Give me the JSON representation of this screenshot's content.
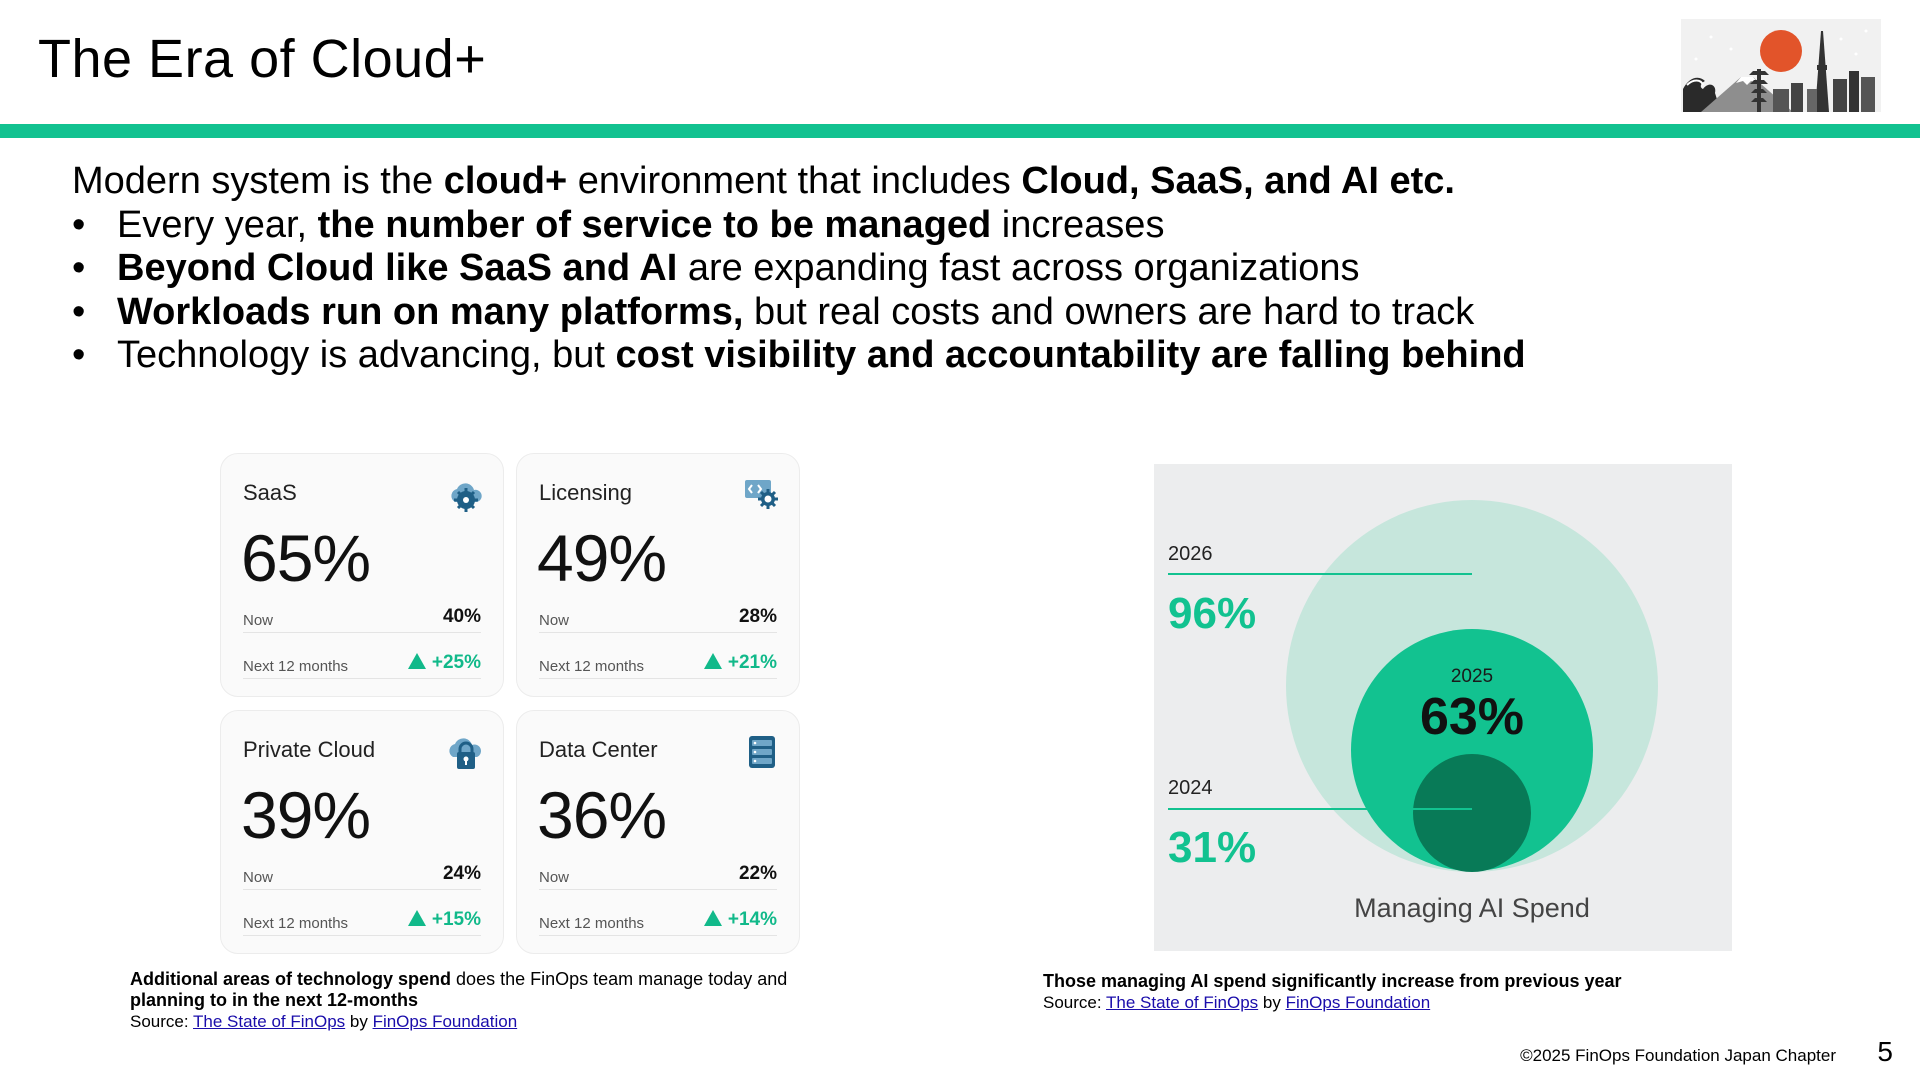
{
  "slide": {
    "title": "The Era of Cloud+",
    "accent_color": "#12c290",
    "page_number": "5",
    "footer": "©2025 FinOps Foundation Japan Chapter"
  },
  "intro": {
    "lead": {
      "p1": "Modern system is the ",
      "b1": "cloud+",
      "p2": " environment that includes ",
      "b2": "Cloud, SaaS, and AI etc."
    },
    "bullets": [
      {
        "pre": "Every year, ",
        "bold": "the number of service to be managed",
        "post": " increases"
      },
      {
        "pre": "",
        "bold": "Beyond Cloud like SaaS and AI",
        "post": " are expanding fast across organizations"
      },
      {
        "pre": "",
        "bold": "Workloads run on many platforms,",
        "post": " but real costs and owners are hard to track"
      },
      {
        "pre": "Technology is advancing, but ",
        "bold": "cost visibility and accountability are falling behind",
        "post": ""
      }
    ]
  },
  "cards": [
    {
      "name": "SaaS",
      "icon": "cloud-gear-icon",
      "pct": "65%",
      "now_label": "Now",
      "now_value": "40%",
      "next_label": "Next 12 months",
      "next_value": "+25%"
    },
    {
      "name": "Licensing",
      "icon": "license-gear-icon",
      "pct": "49%",
      "now_label": "Now",
      "now_value": "28%",
      "next_label": "Next 12 months",
      "next_value": "+21%"
    },
    {
      "name": "Private Cloud",
      "icon": "cloud-lock-icon",
      "pct": "39%",
      "now_label": "Now",
      "now_value": "24%",
      "next_label": "Next 12 months",
      "next_value": "+15%"
    },
    {
      "name": "Data Center",
      "icon": "server-icon",
      "pct": "36%",
      "now_label": "Now",
      "now_value": "22%",
      "next_label": "Next 12 months",
      "next_value": "+14%"
    }
  ],
  "left_caption": {
    "bold": "Additional areas of technology spend",
    "rest": " does the FinOps team manage today and",
    "line2": "planning to in the next 12-months",
    "source_label": "Source: ",
    "source_link1": "The State of FinOps",
    "by": " by ",
    "source_link2": "FinOps Foundation"
  },
  "ai_spend": {
    "year_2026": "2026",
    "value_2026": "96%",
    "year_2025": "2025",
    "value_2025": "63%",
    "year_2024": "2024",
    "value_2024": "31%",
    "label": "Managing AI Spend",
    "colors": {
      "outer": "#c6e6dc",
      "middle": "#12c290",
      "inner": "#087a57",
      "text_green": "#12c290"
    }
  },
  "right_caption": {
    "bold": "Those managing AI spend significantly increase from previous year",
    "source_label": "Source: ",
    "source_link1": "The State of FinOps",
    "by": " by ",
    "source_link2": "FinOps Foundation"
  }
}
